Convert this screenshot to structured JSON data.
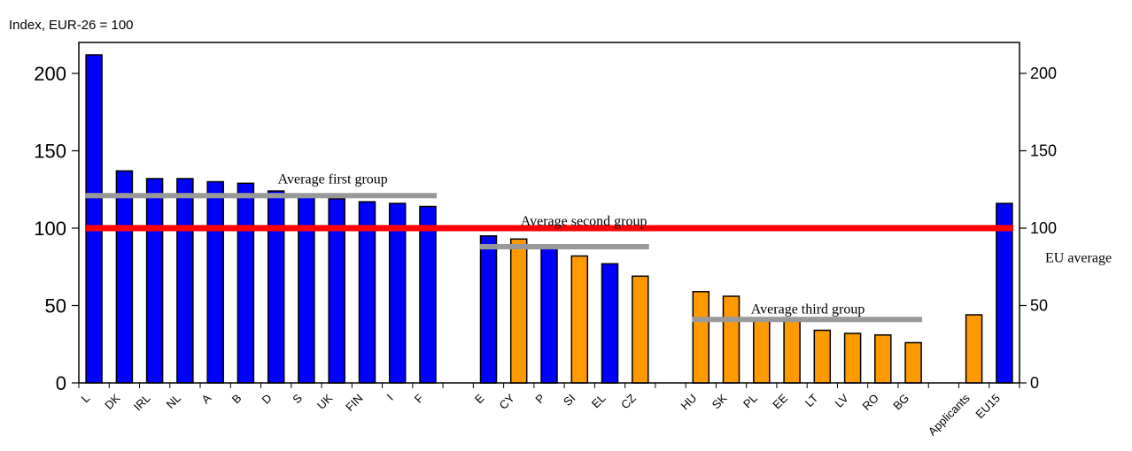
{
  "chart_data": {
    "type": "bar",
    "ylabel": "Index, EUR-26 = 100",
    "ylim": [
      0,
      220
    ],
    "yticks": [
      0,
      50,
      100,
      150,
      200
    ],
    "grid": false,
    "colors": {
      "member": "#0000ff",
      "applicant": "#ff9900",
      "eu_average_line": "#ff0000",
      "group_average_line": "#999999"
    },
    "bars": [
      {
        "label": "L",
        "value": 212,
        "group": "member"
      },
      {
        "label": "DK",
        "value": 137,
        "group": "member"
      },
      {
        "label": "IRL",
        "value": 132,
        "group": "member"
      },
      {
        "label": "NL",
        "value": 132,
        "group": "member"
      },
      {
        "label": "A",
        "value": 130,
        "group": "member"
      },
      {
        "label": "B",
        "value": 129,
        "group": "member"
      },
      {
        "label": "D",
        "value": 124,
        "group": "member"
      },
      {
        "label": "S",
        "value": 120,
        "group": "member"
      },
      {
        "label": "UK",
        "value": 119,
        "group": "member"
      },
      {
        "label": "FIN",
        "value": 117,
        "group": "member"
      },
      {
        "label": "I",
        "value": 116,
        "group": "member"
      },
      {
        "label": "F",
        "value": 114,
        "group": "member"
      },
      {
        "label": "",
        "value": null,
        "group": "gap"
      },
      {
        "label": "E",
        "value": 95,
        "group": "member"
      },
      {
        "label": "CY",
        "value": 93,
        "group": "applicant"
      },
      {
        "label": "P",
        "value": 87,
        "group": "member"
      },
      {
        "label": "SI",
        "value": 82,
        "group": "applicant"
      },
      {
        "label": "EL",
        "value": 77,
        "group": "member"
      },
      {
        "label": "CZ",
        "value": 69,
        "group": "applicant"
      },
      {
        "label": "",
        "value": null,
        "group": "gap"
      },
      {
        "label": "HU",
        "value": 59,
        "group": "applicant"
      },
      {
        "label": "SK",
        "value": 56,
        "group": "applicant"
      },
      {
        "label": "PL",
        "value": 42,
        "group": "applicant"
      },
      {
        "label": "EE",
        "value": 40,
        "group": "applicant"
      },
      {
        "label": "LT",
        "value": 34,
        "group": "applicant"
      },
      {
        "label": "LV",
        "value": 32,
        "group": "applicant"
      },
      {
        "label": "RO",
        "value": 31,
        "group": "applicant"
      },
      {
        "label": "BG",
        "value": 26,
        "group": "applicant"
      },
      {
        "label": "",
        "value": null,
        "group": "gap"
      },
      {
        "label": "Applicants",
        "value": 44,
        "group": "applicant"
      },
      {
        "label": "EU15",
        "value": 116,
        "group": "member"
      }
    ],
    "reference_lines": [
      {
        "name": "EU average",
        "value": 100,
        "from": 0,
        "to": 30,
        "color": "#ff0000"
      },
      {
        "name": "Average first group",
        "value": 121,
        "from": 0,
        "to": 11,
        "color": "#999999"
      },
      {
        "name": "Average second group",
        "value": 88,
        "from": 13,
        "to": 18,
        "color": "#999999"
      },
      {
        "name": "Average third group",
        "value": 41,
        "from": 20,
        "to": 27,
        "color": "#999999"
      }
    ]
  }
}
